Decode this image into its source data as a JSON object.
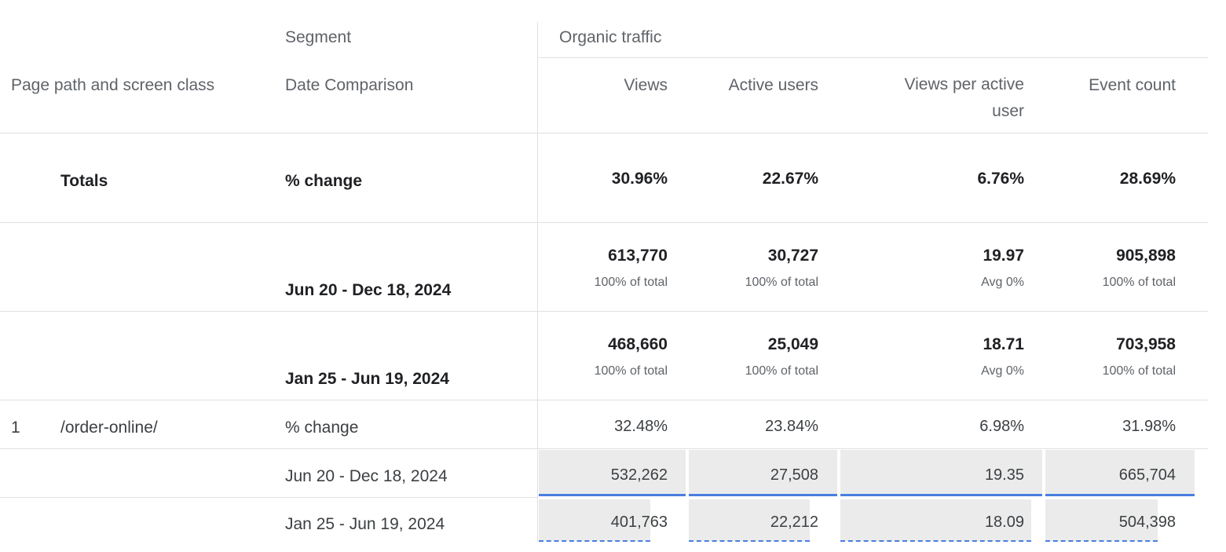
{
  "header": {
    "segment_label": "Segment",
    "segment_value": "Organic traffic",
    "dimension_label": "Page path and screen class",
    "comparison_label": "Date Comparison",
    "metrics": [
      "Views",
      "Active users",
      "Views per active",
      "Event count"
    ],
    "metric_2_line2": "user"
  },
  "totals": {
    "label": "Totals",
    "change_label": "% change",
    "change": [
      "30.96%",
      "22.67%",
      "6.76%",
      "28.69%"
    ],
    "period1": {
      "label": "Jun 20 - Dec 18, 2024",
      "values": [
        "613,770",
        "30,727",
        "19.97",
        "905,898"
      ],
      "subs": [
        "100% of total",
        "100% of total",
        "Avg 0%",
        "100% of total"
      ]
    },
    "period2": {
      "label": "Jan 25 - Jun 19, 2024",
      "values": [
        "468,660",
        "25,049",
        "18.71",
        "703,958"
      ],
      "subs": [
        "100% of total",
        "100% of total",
        "Avg 0%",
        "100% of total"
      ]
    }
  },
  "rows": [
    {
      "index": "1",
      "page": "/order-online/",
      "change_label": "% change",
      "change": [
        "32.48%",
        "23.84%",
        "6.98%",
        "31.98%"
      ],
      "period1": {
        "label": "Jun 20 - Dec 18, 2024",
        "values": [
          "532,262",
          "27,508",
          "19.35",
          "665,704"
        ]
      },
      "period2": {
        "label": "Jan 25 - Jun 19, 2024",
        "values": [
          "401,763",
          "22,212",
          "18.09",
          "504,398"
        ]
      }
    }
  ],
  "colors": {
    "period1_line": "#4a7ee0",
    "period2_line": "#4a7ee0",
    "cell_fill": "#ebebeb"
  }
}
